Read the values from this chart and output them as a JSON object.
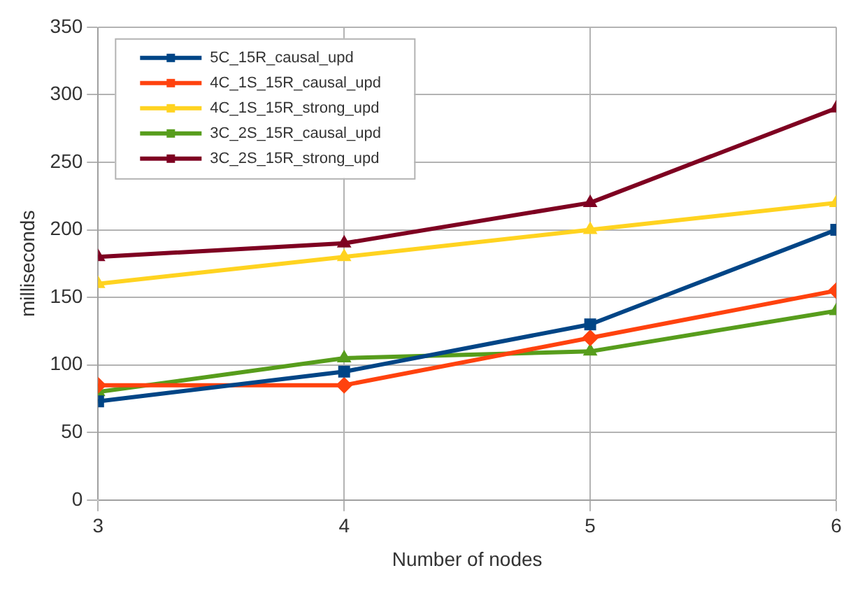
{
  "chart_data": {
    "type": "line",
    "xlabel": "Number of nodes",
    "ylabel": "milliseconds",
    "x": [
      3,
      4,
      5,
      6
    ],
    "xlim": [
      3,
      6
    ],
    "xticks": [
      3,
      4,
      5,
      6
    ],
    "ylim": [
      0,
      350
    ],
    "yticks": [
      0,
      50,
      100,
      150,
      200,
      250,
      300,
      350
    ],
    "grid": true,
    "legend": "top left",
    "line_style": "solid",
    "series": [
      {
        "name": "5C_15R_causal_upd",
        "color": "#004586",
        "marker": "square",
        "values": [
          73,
          95,
          130,
          200
        ]
      },
      {
        "name": "4C_1S_15R_causal_upd",
        "color": "#ff420e",
        "marker": "diamond",
        "values": [
          85,
          85,
          120,
          155
        ]
      },
      {
        "name": "4C_1S_15R_strong_upd",
        "color": "#ffd320",
        "marker": "triangle",
        "values": [
          160,
          180,
          200,
          220
        ]
      },
      {
        "name": "3C_2S_15R_causal_upd",
        "color": "#579d1c",
        "marker": "triangle",
        "values": [
          80,
          105,
          110,
          140
        ]
      },
      {
        "name": "3C_2S_15R_strong_upd",
        "color": "#7e0021",
        "marker": "triangle",
        "values": [
          180,
          190,
          220,
          290
        ]
      }
    ]
  }
}
